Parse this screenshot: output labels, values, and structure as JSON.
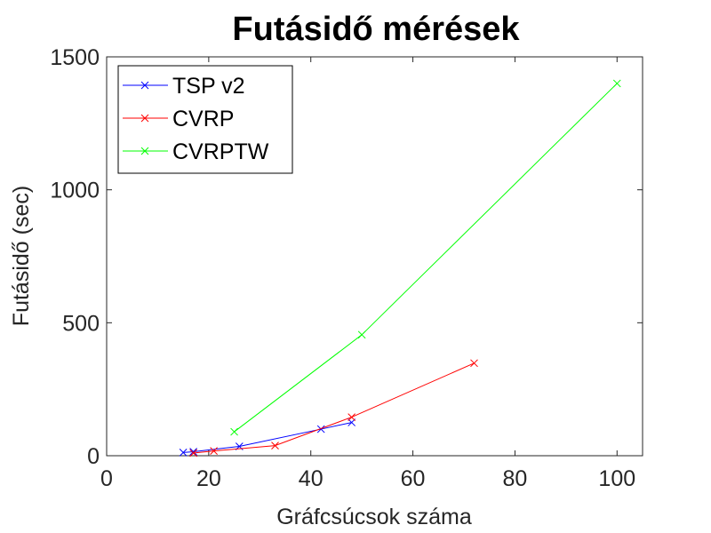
{
  "chart_data": {
    "type": "line",
    "title": "Futásidő mérések",
    "xlabel": "Gráfcsúcsok száma",
    "ylabel": "Futásidő (sec)",
    "xlim": [
      0,
      105
    ],
    "ylim": [
      0,
      1500
    ],
    "xticks": [
      0,
      20,
      40,
      60,
      80,
      100
    ],
    "yticks": [
      0,
      500,
      1000,
      1500
    ],
    "xtick_labels": [
      "0",
      "20",
      "40",
      "60",
      "80",
      "100"
    ],
    "ytick_labels": [
      "0",
      "500",
      "1000",
      "1500"
    ],
    "grid": false,
    "legend_position": "top-left",
    "marker": "x",
    "series": [
      {
        "name": "TSP v2",
        "color": "#0000ff",
        "x": [
          15,
          17,
          26,
          42,
          48
        ],
        "y": [
          12,
          15,
          35,
          100,
          125
        ]
      },
      {
        "name": "CVRP",
        "color": "#ff0000",
        "x": [
          17,
          21,
          33,
          48,
          72
        ],
        "y": [
          10,
          18,
          38,
          145,
          348
        ]
      },
      {
        "name": "CVRPTW",
        "color": "#00ff00",
        "x": [
          25,
          50,
          100
        ],
        "y": [
          90,
          455,
          1400
        ]
      }
    ]
  }
}
